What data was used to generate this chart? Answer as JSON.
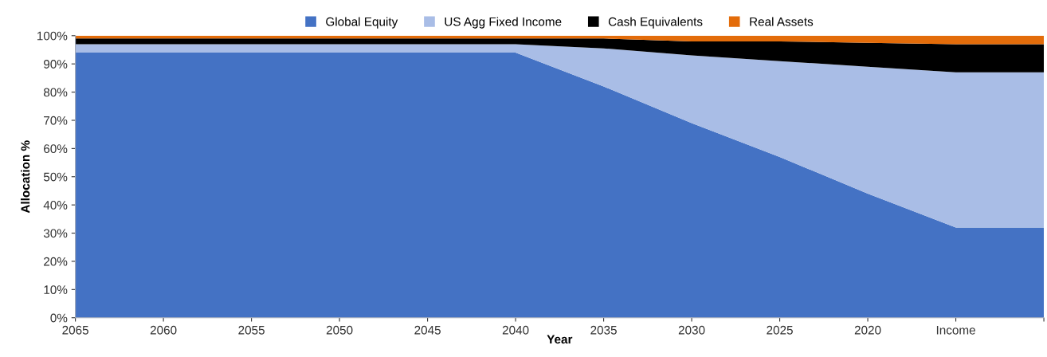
{
  "chart_data": {
    "type": "area",
    "stacked": true,
    "xlabel": "Year",
    "ylabel": "Allocation %",
    "categories": [
      "2065",
      "2060",
      "2055",
      "2050",
      "2045",
      "2040",
      "2035",
      "2030",
      "2025",
      "2020",
      "Income",
      null
    ],
    "series": [
      {
        "name": "Global Equity",
        "color": "#4472c4",
        "values": [
          94,
          94,
          94,
          94,
          94,
          94,
          82,
          69,
          57,
          44,
          32,
          32
        ]
      },
      {
        "name": "US Agg Fixed Income",
        "color": "#a9bde6",
        "values": [
          3,
          3,
          3,
          3,
          3,
          3,
          13.5,
          24,
          34,
          45,
          55,
          55
        ]
      },
      {
        "name": "Cash Equivalents",
        "color": "#000000",
        "values": [
          2,
          2,
          2,
          2,
          2,
          2,
          3.5,
          5,
          7,
          8.5,
          10,
          10
        ]
      },
      {
        "name": "Real Assets",
        "color": "#e36c0a",
        "values": [
          1,
          1,
          1,
          1,
          1,
          1,
          1,
          2,
          2,
          2.5,
          3,
          3
        ]
      }
    ],
    "ylim": [
      0,
      100
    ],
    "yticks": [
      {
        "value": 0,
        "label": "0%"
      },
      {
        "value": 10,
        "label": "10%"
      },
      {
        "value": 20,
        "label": "20%"
      },
      {
        "value": 30,
        "label": "30%"
      },
      {
        "value": 40,
        "label": "40%"
      },
      {
        "value": 50,
        "label": "50%"
      },
      {
        "value": 60,
        "label": "60%"
      },
      {
        "value": 70,
        "label": "70%"
      },
      {
        "value": 80,
        "label": "80%"
      },
      {
        "value": 90,
        "label": "90%"
      },
      {
        "value": 100,
        "label": "100%"
      }
    ],
    "legend": "top",
    "grid": false
  }
}
